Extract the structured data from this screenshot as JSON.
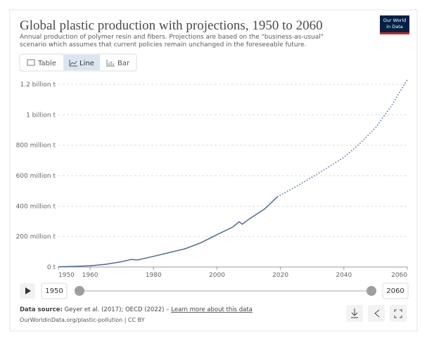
{
  "chart_data": {
    "type": "line",
    "title": "Global plastic production with projections, 1950 to 2060",
    "subtitle": "Annual production of polymer resin and fibers. Projections are based on the \"business-as-usual\" scenario which assumes that current policies remain unchanged in the foreseeable future.",
    "x": [
      1950,
      1955,
      1960,
      1965,
      1970,
      1973,
      1975,
      1980,
      1985,
      1990,
      1995,
      2000,
      2005,
      2007,
      2008,
      2010,
      2015,
      2019,
      2025,
      2030,
      2035,
      2040,
      2045,
      2050,
      2055,
      2060
    ],
    "series": [
      {
        "color": "#4c6a9c",
        "style": "solid",
        "values": [
          2000000,
          4000000,
          8000000,
          18000000,
          35000000,
          50000000,
          46000000,
          70000000,
          95000000,
          120000000,
          160000000,
          213000000,
          263000000,
          297000000,
          281000000,
          313000000,
          381000000,
          460000000,
          null,
          null,
          null,
          null,
          null,
          null,
          null,
          null
        ]
      },
      {
        "color": "#4c6a9c",
        "style": "dotted",
        "values": [
          null,
          null,
          null,
          null,
          null,
          null,
          null,
          null,
          null,
          null,
          null,
          null,
          null,
          null,
          null,
          null,
          null,
          460000000,
          530000000,
          590000000,
          655000000,
          720000000,
          810000000,
          915000000,
          1060000000,
          1231000000
        ]
      }
    ],
    "xlim": [
      1950,
      2060
    ],
    "xticks": [
      1950,
      1960,
      1980,
      2000,
      2020,
      2040,
      2060
    ],
    "ylim": [
      0,
      1200000000
    ],
    "yticks": [
      {
        "value": 0,
        "label": "0 t"
      },
      {
        "value": 200000000,
        "label": "200 million t"
      },
      {
        "value": 400000000,
        "label": "400 million t"
      },
      {
        "value": 600000000,
        "label": "600 million t"
      },
      {
        "value": 800000000,
        "label": "800 million t"
      },
      {
        "value": 1000000000,
        "label": "1 billion t"
      },
      {
        "value": 1200000000,
        "label": "1.2 billion t"
      }
    ],
    "grid": true
  },
  "ui": {
    "logo": [
      "Our World",
      "in Data"
    ],
    "tabs": [
      "Table",
      "Line",
      "Bar"
    ],
    "timeline": {
      "start": "1950",
      "end": "2060"
    },
    "source_label": "Data source:",
    "source_text": " Geyer et al. (2017); OECD (2022) – ",
    "source_link": "Learn more about this data",
    "footer": "OurWorldinData.org/plastic-pollution | CC BY"
  }
}
